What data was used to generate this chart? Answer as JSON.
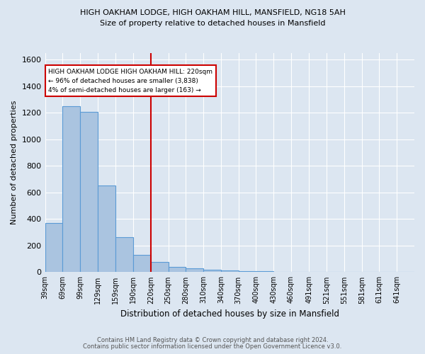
{
  "title": "HIGH OAKHAM LODGE, HIGH OAKHAM HILL, MANSFIELD, NG18 5AH",
  "subtitle": "Size of property relative to detached houses in Mansfield",
  "xlabel": "Distribution of detached houses by size in Mansfield",
  "ylabel": "Number of detached properties",
  "footer1": "Contains HM Land Registry data © Crown copyright and database right 2024.",
  "footer2": "Contains public sector information licensed under the Open Government Licence v3.0.",
  "annotation_line1": "HIGH OAKHAM LODGE HIGH OAKHAM HILL: 220sqm",
  "annotation_line2": "← 96% of detached houses are smaller (3,838)",
  "annotation_line3": "4% of semi-detached houses are larger (163) →",
  "bar_color": "#aac4e0",
  "bar_edge_color": "#5b9bd5",
  "background_color": "#dce6f1",
  "grid_color": "#ffffff",
  "marker_color": "#cc0000",
  "marker_value": 220,
  "categories": [
    "39sqm",
    "69sqm",
    "99sqm",
    "129sqm",
    "159sqm",
    "190sqm",
    "220sqm",
    "250sqm",
    "280sqm",
    "310sqm",
    "340sqm",
    "370sqm",
    "400sqm",
    "430sqm",
    "460sqm",
    "491sqm",
    "521sqm",
    "551sqm",
    "581sqm",
    "611sqm",
    "641sqm"
  ],
  "values": [
    370,
    1250,
    1210,
    655,
    265,
    130,
    75,
    40,
    28,
    18,
    12,
    8,
    10,
    0,
    0,
    0,
    0,
    0,
    0,
    0,
    0
  ],
  "bin_edges": [
    39,
    69,
    99,
    129,
    159,
    190,
    220,
    250,
    280,
    310,
    340,
    370,
    400,
    430,
    460,
    491,
    521,
    551,
    581,
    611,
    641,
    671
  ],
  "ylim": [
    0,
    1650
  ],
  "yticks": [
    0,
    200,
    400,
    600,
    800,
    1000,
    1200,
    1400,
    1600
  ]
}
